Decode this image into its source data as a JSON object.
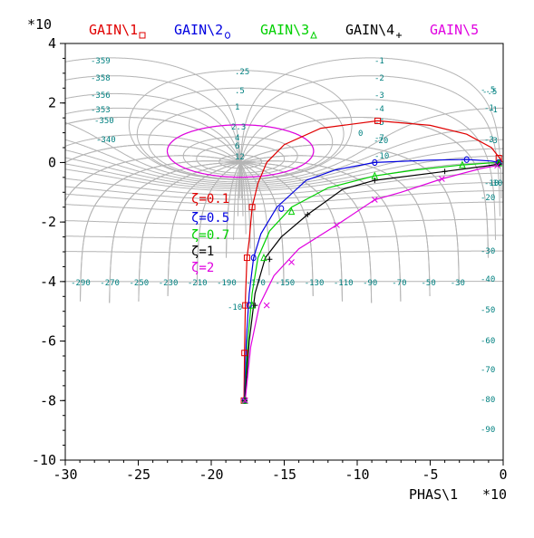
{
  "chart_data": {
    "type": "line",
    "title": "",
    "xlabel": "PHAS\\1",
    "x_multiplier": "*10",
    "y_multiplier": "*10",
    "xlim": [
      -300,
      0
    ],
    "ylim": [
      -100,
      40
    ],
    "x_ticks": [
      -300,
      -250,
      -200,
      -150,
      -100,
      -50,
      0
    ],
    "x_tick_labels": [
      "-30",
      "-25",
      "-20",
      "-15",
      "-10",
      "-5",
      "0"
    ],
    "y_ticks": [
      -100,
      -80,
      -60,
      -40,
      -20,
      0,
      20,
      40
    ],
    "y_tick_labels": [
      "-10",
      "-8",
      "-6",
      "-4",
      "-2",
      "0",
      "2",
      "4"
    ],
    "grid": true,
    "legend_position": "top",
    "series": [
      {
        "name": "GAIN\\1",
        "zeta_label": "ζ=0.1",
        "color": "#e00000",
        "marker": "square",
        "points": [
          [
            -0.6,
            0.1
          ],
          [
            -2,
            1.2
          ],
          [
            -8,
            5
          ],
          [
            -25,
            9.5
          ],
          [
            -50,
            12.5
          ],
          [
            -86,
            14
          ],
          [
            -125,
            11.5
          ],
          [
            -150,
            6
          ],
          [
            -162,
            0
          ],
          [
            -168,
            -7
          ],
          [
            -172,
            -15
          ],
          [
            -174,
            -26
          ],
          [
            -175.5,
            -32
          ],
          [
            -176.5,
            -45
          ],
          [
            -177.2,
            -64
          ],
          [
            -177.6,
            -80
          ]
        ],
        "marker_points": [
          [
            -3,
            1.5
          ],
          [
            -86,
            14
          ],
          [
            -172,
            -15
          ],
          [
            -175.5,
            -32
          ],
          [
            -176.6,
            -48
          ],
          [
            -177.2,
            -64
          ],
          [
            -177.6,
            -80
          ]
        ]
      },
      {
        "name": "GAIN\\2",
        "zeta_label": "ζ=0.5",
        "color": "#0000e0",
        "marker": "circle",
        "points": [
          [
            -0.6,
            -0.5
          ],
          [
            -3,
            0
          ],
          [
            -8,
            0.5
          ],
          [
            -25,
            1
          ],
          [
            -50,
            0.8
          ],
          [
            -88,
            0
          ],
          [
            -115,
            -2.5
          ],
          [
            -135,
            -6
          ],
          [
            -155,
            -15
          ],
          [
            -166,
            -24
          ],
          [
            -171,
            -32
          ],
          [
            -174,
            -44
          ],
          [
            -176,
            -60
          ],
          [
            -177.2,
            -80
          ]
        ],
        "marker_points": [
          [
            -3,
            0
          ],
          [
            -25,
            1
          ],
          [
            -88,
            0
          ],
          [
            -152,
            -15.5
          ],
          [
            -171,
            -32
          ],
          [
            -174,
            -48
          ],
          [
            -177.2,
            -80
          ]
        ]
      },
      {
        "name": "GAIN\\3",
        "zeta_label": "ζ=0.7",
        "color": "#00d000",
        "marker": "triangle",
        "points": [
          [
            -0.6,
            -0.6
          ],
          [
            -3,
            -0.2
          ],
          [
            -8,
            -0.1
          ],
          [
            -28,
            -0.8
          ],
          [
            -60,
            -2.5
          ],
          [
            -88,
            -4.5
          ],
          [
            -120,
            -8.5
          ],
          [
            -145,
            -15
          ],
          [
            -160,
            -23
          ],
          [
            -168,
            -32
          ],
          [
            -172,
            -44
          ],
          [
            -175,
            -60
          ],
          [
            -177,
            -80
          ]
        ],
        "marker_points": [
          [
            -3,
            -0.2
          ],
          [
            -28,
            -0.8
          ],
          [
            -88,
            -4.5
          ],
          [
            -145,
            -16.5
          ],
          [
            -164,
            -32
          ],
          [
            -172,
            -48
          ],
          [
            -177,
            -80
          ]
        ]
      },
      {
        "name": "GAIN\\4",
        "zeta_label": "ζ=1",
        "color": "#000000",
        "marker": "plus",
        "points": [
          [
            -0.6,
            -0.7
          ],
          [
            -3,
            -0.5
          ],
          [
            -12,
            -1.2
          ],
          [
            -40,
            -3
          ],
          [
            -88,
            -6
          ],
          [
            -110,
            -9
          ],
          [
            -134,
            -17.5
          ],
          [
            -152,
            -25
          ],
          [
            -163,
            -32
          ],
          [
            -170,
            -44
          ],
          [
            -174,
            -60
          ],
          [
            -177,
            -80
          ]
        ],
        "marker_points": [
          [
            -3,
            -0.5
          ],
          [
            -40,
            -3
          ],
          [
            -88,
            -6
          ],
          [
            -134,
            -17.5
          ],
          [
            -160,
            -32.5
          ],
          [
            -170,
            -48
          ],
          [
            -177,
            -80
          ]
        ]
      },
      {
        "name": "GAIN\\5",
        "zeta_label": "ζ=2",
        "color": "#e000e0",
        "marker": "x",
        "points": [
          [
            -0.6,
            -0.7
          ],
          [
            -4,
            -1
          ],
          [
            -15,
            -2
          ],
          [
            -42,
            -5.5
          ],
          [
            -70,
            -10
          ],
          [
            -88,
            -12.5
          ],
          [
            -114,
            -21
          ],
          [
            -140,
            -29
          ],
          [
            -157,
            -38
          ],
          [
            -167,
            -48
          ],
          [
            -173,
            -62
          ],
          [
            -176.8,
            -80
          ]
        ],
        "marker_points": [
          [
            -4,
            -1
          ],
          [
            -42,
            -5.5
          ],
          [
            -88,
            -12.5
          ],
          [
            -114,
            -21
          ],
          [
            -145,
            -33.5
          ],
          [
            -162,
            -48
          ],
          [
            -176.8,
            -80
          ]
        ]
      }
    ],
    "nichols_grid": {
      "color": "#b4b4b4",
      "label_color": "#008080",
      "m_circle_db": [
        12,
        6,
        4,
        2.3,
        1,
        0.5,
        0.25,
        -1,
        -2,
        -3,
        -4,
        -5,
        -6,
        -8,
        -10,
        -12,
        -15,
        -20,
        -25,
        -30,
        -40
      ],
      "m_labels": [
        "12",
        "6",
        "4",
        "2.3",
        "1",
        ".5",
        ".25",
        "-1",
        "-2",
        "-3",
        "-4",
        "-5",
        "-7",
        "-10",
        "-20",
        "-30",
        "-40",
        "-50",
        "-60",
        "-70",
        "-80",
        "-90",
        "-.5",
        "-.5",
        "-1",
        "-3",
        "-10",
        "-1",
        "0"
      ],
      "highlight_circle_db": 2.3,
      "highlight_color": "#e000e0",
      "n_contour_labels": [
        "-359",
        "-358",
        "-356",
        "-353",
        "-350",
        "-340",
        "-290",
        "-270",
        "-250",
        "-230",
        "-210",
        "-190",
        "-170",
        "-150",
        "-130",
        "-110",
        "-90",
        "-70",
        "-50",
        "-30",
        "-10"
      ]
    }
  }
}
